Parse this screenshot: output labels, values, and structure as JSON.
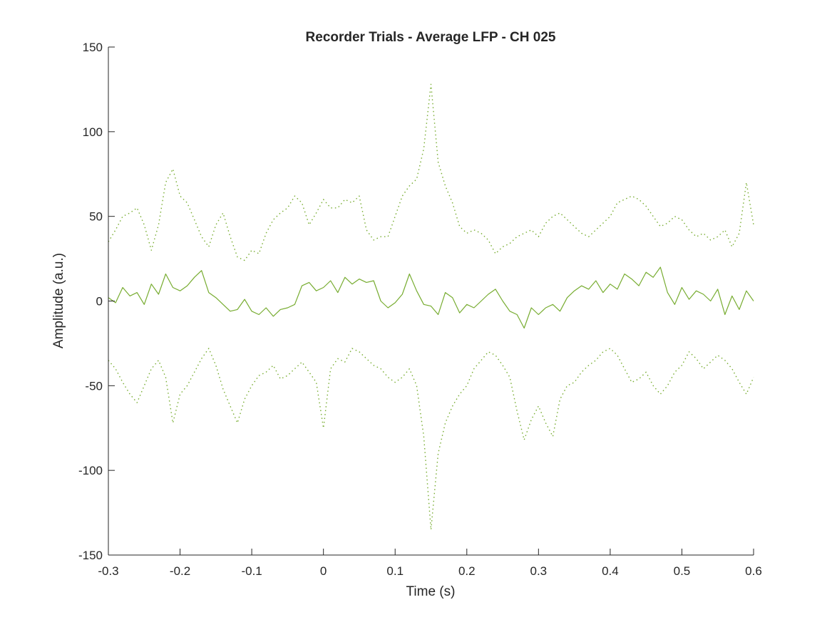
{
  "chart_data": {
    "type": "line",
    "title": "Recorder Trials - Average LFP - CH 025",
    "xlabel": "Time (s)",
    "ylabel": "Amplitude (a.u.)",
    "xlim": [
      -0.3,
      0.6
    ],
    "ylim": [
      -150,
      150
    ],
    "xticks": [
      -0.3,
      -0.2,
      -0.1,
      0,
      0.1,
      0.2,
      0.3,
      0.4,
      0.5,
      0.6
    ],
    "xtick_labels": [
      "-0.3",
      "-0.2",
      "-0.1",
      "0",
      "0.1",
      "0.2",
      "0.3",
      "0.4",
      "0.5",
      "0.6"
    ],
    "yticks": [
      -150,
      -100,
      -50,
      0,
      50,
      100,
      150
    ],
    "ytick_labels": [
      "-150",
      "-100",
      "-50",
      "0",
      "50",
      "100",
      "150"
    ],
    "grid": false,
    "legend": "none",
    "color": "#77AC30",
    "x": [
      -0.3,
      -0.29,
      -0.28,
      -0.27,
      -0.26,
      -0.25,
      -0.24,
      -0.23,
      -0.22,
      -0.21,
      -0.2,
      -0.19,
      -0.18,
      -0.17,
      -0.16,
      -0.15,
      -0.14,
      -0.13,
      -0.12,
      -0.11,
      -0.1,
      -0.09,
      -0.08,
      -0.07,
      -0.06,
      -0.05,
      -0.04,
      -0.03,
      -0.02,
      -0.01,
      0.0,
      0.01,
      0.02,
      0.03,
      0.04,
      0.05,
      0.06,
      0.07,
      0.08,
      0.09,
      0.1,
      0.11,
      0.12,
      0.13,
      0.14,
      0.15,
      0.16,
      0.17,
      0.18,
      0.19,
      0.2,
      0.21,
      0.22,
      0.23,
      0.24,
      0.25,
      0.26,
      0.27,
      0.28,
      0.29,
      0.3,
      0.31,
      0.32,
      0.33,
      0.34,
      0.35,
      0.36,
      0.37,
      0.38,
      0.39,
      0.4,
      0.41,
      0.42,
      0.43,
      0.44,
      0.45,
      0.46,
      0.47,
      0.48,
      0.49,
      0.5,
      0.51,
      0.52,
      0.53,
      0.54,
      0.55,
      0.56,
      0.57,
      0.58,
      0.59,
      0.6
    ],
    "series": [
      {
        "style": "solid",
        "values": [
          2,
          -1,
          8,
          3,
          5,
          -2,
          10,
          4,
          16,
          8,
          6,
          9,
          14,
          18,
          5,
          2,
          -2,
          -6,
          -5,
          1,
          -6,
          -8,
          -4,
          -9,
          -5,
          -4,
          -2,
          9,
          11,
          6,
          8,
          12,
          5,
          14,
          10,
          13,
          11,
          12,
          0,
          -4,
          -1,
          4,
          16,
          6,
          -2,
          -3,
          -8,
          5,
          2,
          -7,
          -2,
          -4,
          0,
          4,
          7,
          0,
          -6,
          -8,
          -16,
          -4,
          -8,
          -4,
          -2,
          -6,
          2,
          6,
          9,
          7,
          12,
          5,
          10,
          7,
          16,
          13,
          9,
          17,
          14,
          20,
          5,
          -2,
          8,
          1,
          6,
          4,
          0,
          7,
          -8,
          3,
          -5,
          6,
          0
        ]
      },
      {
        "style": "dotted",
        "values": [
          35,
          42,
          50,
          52,
          55,
          45,
          30,
          45,
          70,
          78,
          62,
          58,
          48,
          38,
          32,
          45,
          52,
          38,
          26,
          24,
          30,
          28,
          40,
          48,
          52,
          55,
          62,
          58,
          45,
          52,
          60,
          55,
          55,
          60,
          58,
          62,
          42,
          36,
          38,
          38,
          50,
          62,
          68,
          72,
          90,
          128,
          82,
          68,
          58,
          44,
          40,
          42,
          40,
          36,
          28,
          32,
          34,
          38,
          40,
          42,
          38,
          46,
          50,
          52,
          48,
          44,
          40,
          38,
          42,
          46,
          50,
          58,
          60,
          62,
          60,
          56,
          50,
          44,
          46,
          50,
          48,
          42,
          38,
          40,
          36,
          38,
          42,
          32,
          40,
          70,
          45
        ]
      },
      {
        "style": "dotted",
        "values": [
          -35,
          -40,
          -48,
          -55,
          -60,
          -50,
          -40,
          -35,
          -45,
          -72,
          -55,
          -50,
          -42,
          -34,
          -28,
          -38,
          -52,
          -62,
          -72,
          -58,
          -50,
          -44,
          -42,
          -38,
          -46,
          -44,
          -40,
          -36,
          -42,
          -48,
          -75,
          -40,
          -34,
          -36,
          -28,
          -30,
          -34,
          -38,
          -40,
          -45,
          -48,
          -45,
          -40,
          -50,
          -80,
          -135,
          -90,
          -72,
          -62,
          -55,
          -50,
          -40,
          -35,
          -30,
          -32,
          -38,
          -45,
          -65,
          -82,
          -70,
          -62,
          -72,
          -80,
          -58,
          -50,
          -48,
          -42,
          -38,
          -35,
          -30,
          -28,
          -32,
          -40,
          -48,
          -46,
          -42,
          -50,
          -55,
          -50,
          -42,
          -38,
          -30,
          -34,
          -40,
          -36,
          -32,
          -35,
          -40,
          -48,
          -55,
          -45
        ]
      }
    ]
  }
}
